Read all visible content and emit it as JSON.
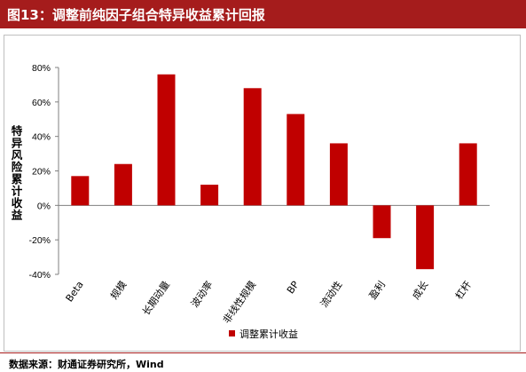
{
  "header": {
    "title": "图13：调整前纯因子组合特异收益累计回报"
  },
  "source": "数据来源：财通证券研究所，Wind",
  "colors": {
    "header_bg": "#a51c1c",
    "bar": "#c00000",
    "axis": "#7f7f7f"
  },
  "chart_data": {
    "type": "bar",
    "title": "",
    "xlabel": "",
    "ylabel": "特异风险累计收益",
    "ylim": [
      -40,
      80
    ],
    "yticks": [
      "80%",
      "60%",
      "40%",
      "20%",
      "0%",
      "-20%",
      "-40%"
    ],
    "grid": false,
    "legend": "bottom",
    "categories": [
      "Beta",
      "规模",
      "长期动量",
      "波动率",
      "非线性规模",
      "BP",
      "流动性",
      "盈利",
      "成长",
      "杠杆"
    ],
    "series": [
      {
        "name": "调整累计收益",
        "values": [
          17,
          24,
          76,
          12,
          68,
          53,
          36,
          -19,
          -37,
          36
        ]
      }
    ]
  }
}
